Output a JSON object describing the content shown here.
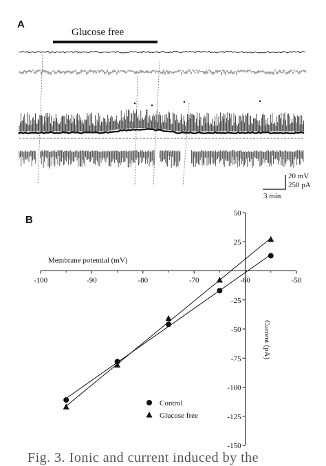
{
  "panel_a": {
    "label": "A",
    "bar_label": "Glucose free",
    "scale_voltage": "20 mV",
    "scale_current": "250 pA",
    "scale_time": "3 min"
  },
  "panel_b": {
    "label": "B"
  },
  "chart_data": {
    "type": "line",
    "xlabel": "Membrane potential (mV)",
    "ylabel": "Current (pA)",
    "xlim": [
      -100,
      -50
    ],
    "ylim": [
      -150,
      50
    ],
    "x_ticks": [
      -100,
      -90,
      -80,
      -70,
      -60,
      -50
    ],
    "y_ticks": [
      50,
      25,
      -25,
      -50,
      -75,
      -100,
      -125,
      -150
    ],
    "x_tick_labels": [
      "-100",
      "-90",
      "-80",
      "-70",
      "-60",
      "-50"
    ],
    "y_tick_labels": [
      "50",
      "25",
      "-25",
      "-50",
      "-75",
      "-100",
      "-125",
      "-150"
    ],
    "series": [
      {
        "name": "Control",
        "marker": "circle",
        "x": [
          -95,
          -85,
          -75,
          -65,
          -55
        ],
        "y": [
          -111,
          -78,
          -46,
          -17,
          13
        ]
      },
      {
        "name": "Glucose free",
        "marker": "triangle",
        "x": [
          -95,
          -85,
          -75,
          -65,
          -55
        ],
        "y": [
          -117,
          -81,
          -41,
          -8,
          27
        ]
      }
    ],
    "legend_position": "bottom-left"
  },
  "caption": {
    "text": "Fig. 3. Ionic and current induced by the"
  }
}
